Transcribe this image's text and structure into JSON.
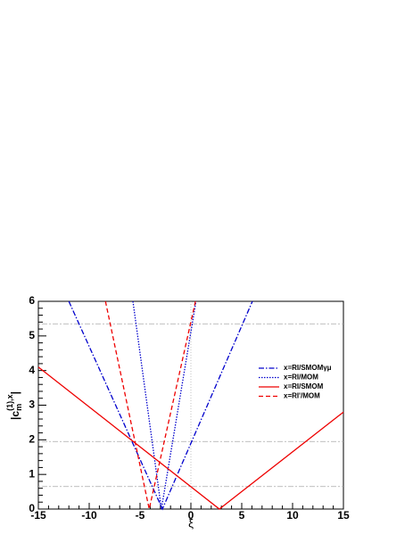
{
  "chart_data": {
    "type": "line",
    "xlabel": "ξ",
    "ylabel": {
      "base": "|c",
      "sub": "m",
      "sup": "(1),x",
      "end": "|"
    },
    "xlim": [
      -15,
      15
    ],
    "ylim": [
      0,
      6
    ],
    "xticks": [
      -15,
      -10,
      -5,
      0,
      5,
      10,
      15
    ],
    "yticks": [
      0,
      1,
      2,
      3,
      4,
      5,
      6
    ],
    "hlines": [
      5.35,
      1.95,
      0.65
    ],
    "vlines": [
      0
    ],
    "legend": "upper right",
    "series": [
      {
        "name": "x=RI/SMOMγμ",
        "color": "#0000cc",
        "dash": "dashdot",
        "x": [
          -12.0,
          -2.8,
          6.05
        ],
        "values": [
          6,
          0,
          6
        ]
      },
      {
        "name": "x=RI/MOM",
        "color": "#0000cc",
        "dash": "dotted",
        "x": [
          -5.7,
          -2.9,
          0.5
        ],
        "values": [
          6,
          0,
          6
        ]
      },
      {
        "name": "x=RI/SMOM",
        "color": "#ee0000",
        "dash": "solid",
        "x": [
          -15,
          2.8,
          15
        ],
        "values": [
          4.1,
          0,
          2.8
        ]
      },
      {
        "name": "x=RI'/MOM",
        "color": "#ee0000",
        "dash": "dashed",
        "x": [
          -8.4,
          -4.1,
          0.45
        ],
        "values": [
          6,
          0,
          6
        ]
      }
    ]
  }
}
